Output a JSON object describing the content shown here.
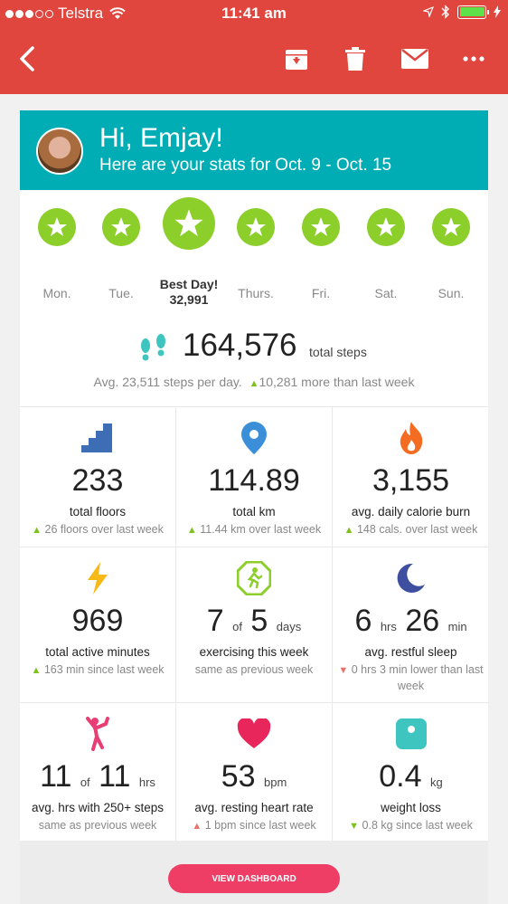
{
  "status_bar": {
    "carrier": "Telstra",
    "time": "11:41 am"
  },
  "nav": {
    "back_icon": "chevron-left-icon",
    "actions": [
      "archive-icon",
      "trash-icon",
      "mail-icon",
      "more-icon"
    ]
  },
  "hero": {
    "greeting": "Hi, Emjay!",
    "subtitle": "Here are your stats for Oct. 9 - Oct. 15"
  },
  "days": [
    {
      "label": "Mon."
    },
    {
      "label": "Tue."
    },
    {
      "label": "Best Day!",
      "value": "32,991",
      "best": true
    },
    {
      "label": "Thurs."
    },
    {
      "label": "Fri."
    },
    {
      "label": "Sat."
    },
    {
      "label": "Sun."
    }
  ],
  "total_steps": {
    "value": "164,576",
    "label": "total steps",
    "avg": "Avg. 23,511 steps per day.",
    "change": "10,281 more than last week"
  },
  "stats": {
    "floors": {
      "value": "233",
      "label": "total floors",
      "sub": "26 floors over last week"
    },
    "km": {
      "value": "114.89",
      "label": "total km",
      "sub": "11.44 km over last week"
    },
    "calories": {
      "value": "3,155",
      "label": "avg. daily calorie burn",
      "sub": "148 cals. over last week"
    },
    "active": {
      "value": "969",
      "label": "total active minutes",
      "sub": "163 min since last week"
    },
    "exercise": {
      "num": "7",
      "of": "of",
      "total": "5",
      "unit": "days",
      "label": "exercising this week",
      "sub": "same as previous week"
    },
    "sleep": {
      "hrs": "6",
      "hrs_unit": "hrs",
      "min": "26",
      "min_unit": "min",
      "label": "avg. restful sleep",
      "sub": "0 hrs 3 min lower than last week"
    },
    "hourly": {
      "num": "11",
      "of": "of",
      "total": "11",
      "unit": "hrs",
      "label": "avg. hrs with 250+ steps",
      "sub": "same as previous week"
    },
    "heart": {
      "value": "53",
      "unit": "bpm",
      "label": "avg. resting heart rate",
      "sub": "1 bpm since last week"
    },
    "weight": {
      "value": "0.4",
      "unit": "kg",
      "label": "weight loss",
      "sub": "0.8 kg since last week"
    }
  },
  "footer": {
    "button": "VIEW DASHBOARD"
  },
  "colors": {
    "header": "#e0453e",
    "hero": "#00adb5",
    "star": "#8cce2a",
    "button": "#ef3e65"
  }
}
